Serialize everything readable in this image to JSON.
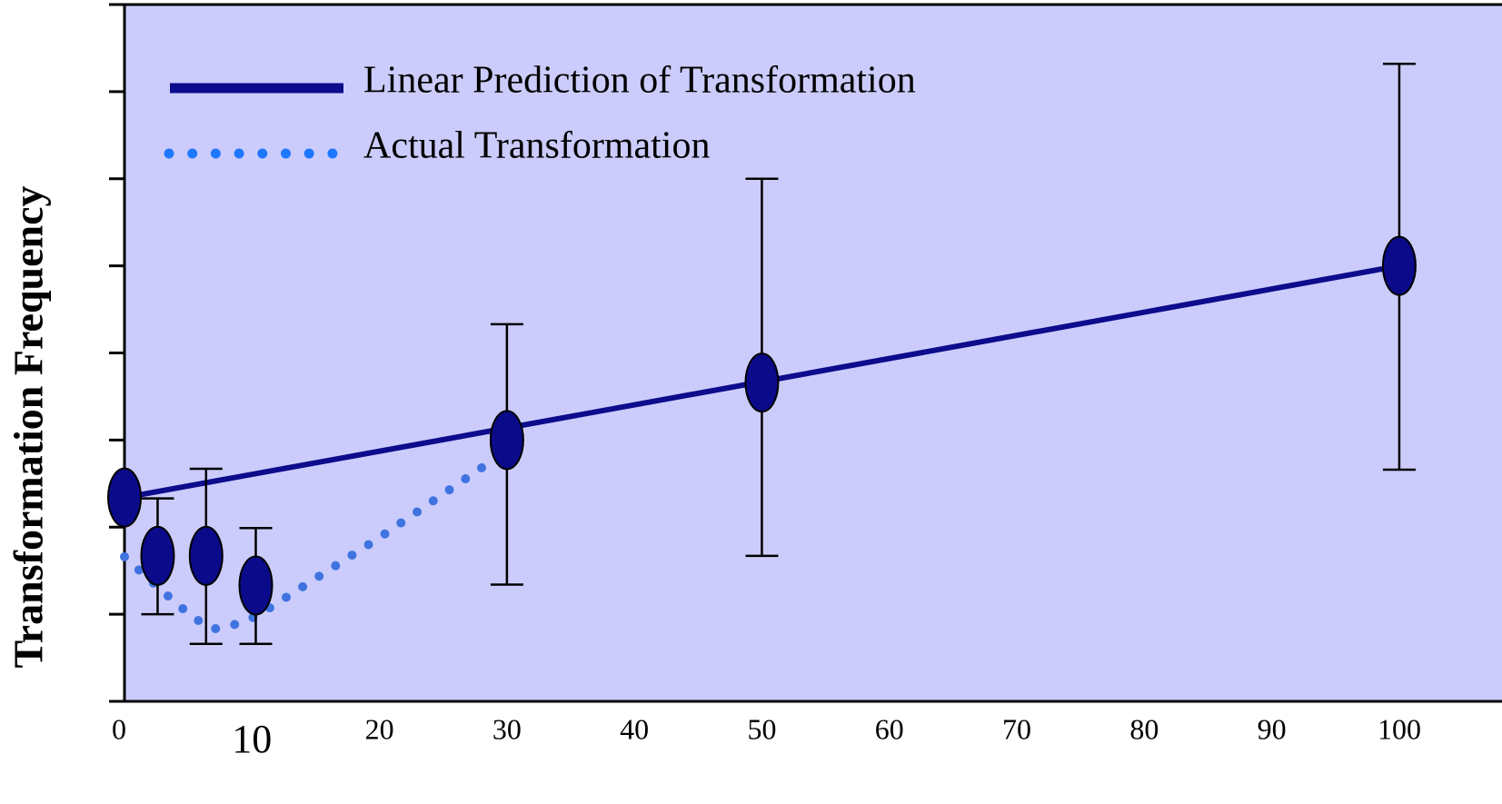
{
  "chart_data": {
    "type": "line",
    "ylabel": "Transformation Frequency",
    "xlim": [
      0,
      102
    ],
    "ylim": [
      0,
      8
    ],
    "xticks": [
      0,
      10,
      20,
      30,
      40,
      50,
      60,
      70,
      80,
      90,
      100
    ],
    "yticks": [
      0,
      1,
      2,
      3,
      4,
      5,
      6,
      7
    ],
    "legend": "upper left",
    "background": "#ccccfc",
    "series": [
      {
        "name": "Linear Prediction of Transformation",
        "color": "#0c0c8c",
        "style": "solid",
        "x": [
          0,
          100
        ],
        "values": [
          2.34,
          5.0
        ]
      },
      {
        "name": "Actual Transformation",
        "color": "#3f74e0",
        "style": "dotted",
        "x": [
          0,
          2.7,
          5.4,
          7,
          8.6,
          10.4,
          20,
          30
        ],
        "values": [
          1.66,
          1.3,
          0.96,
          0.83,
          0.88,
          0.98,
          1.88,
          2.88
        ]
      }
    ],
    "points": {
      "color": "#0a0a8a",
      "x": [
        0,
        2.6,
        6.4,
        10.3,
        30,
        50,
        100
      ],
      "values": [
        2.34,
        1.67,
        1.67,
        1.33,
        3.0,
        3.66,
        5.0
      ],
      "lower": [
        null,
        1.0,
        0.66,
        0.66,
        1.34,
        1.67,
        2.66
      ],
      "upper": [
        null,
        2.33,
        2.67,
        1.99,
        4.33,
        6.0,
        7.32
      ]
    }
  }
}
